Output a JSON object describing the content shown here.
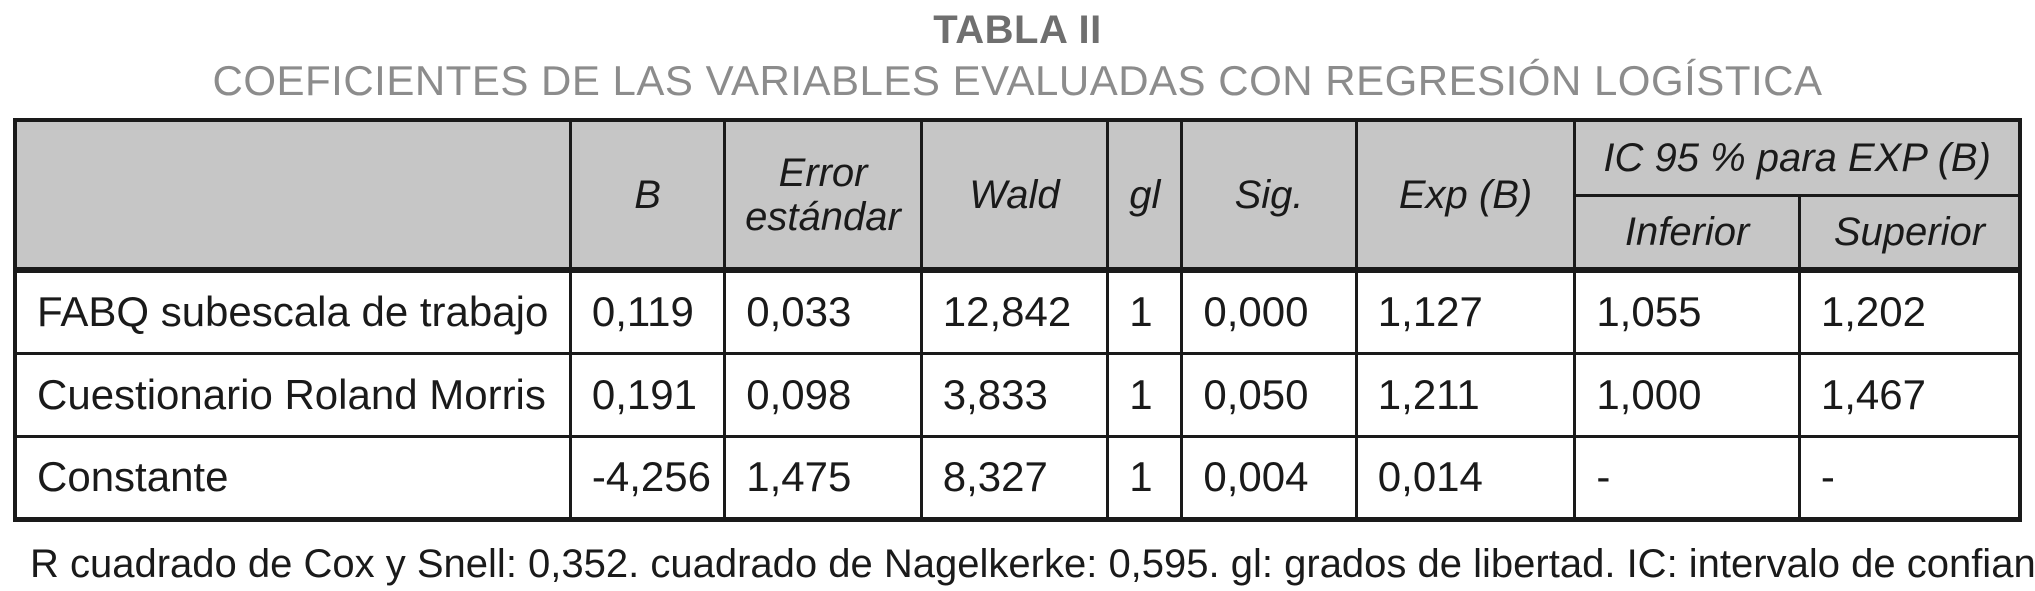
{
  "title": "TABLA II",
  "subtitle": "COEFICIENTES DE LAS VARIABLES EVALUADAS CON REGRESIÓN LOGÍSTICA",
  "table": {
    "headers": {
      "row_label": "",
      "b": "B",
      "std_error": "Error estándar",
      "wald": "Wald",
      "gl": "gl",
      "sig": "Sig.",
      "exp_b": "Exp (B)",
      "ic_group": "IC 95 % para EXP (B)",
      "inferior": "Inferior",
      "superior": "Superior"
    },
    "rows": [
      {
        "label": "FABQ subescala de trabajo",
        "values": [
          "0,119",
          "0,033",
          "12,842",
          "1",
          "0,000",
          "1,127",
          "1,055",
          "1,202"
        ]
      },
      {
        "label": "Cuestionario Roland Morris",
        "values": [
          "0,191",
          "0,098",
          "3,833",
          "1",
          "0,050",
          "1,211",
          "1,000",
          "1,467"
        ]
      },
      {
        "label": "Constante",
        "values": [
          "-4,256",
          "1,475",
          "8,327",
          "1",
          "0,004",
          "0,014",
          "-",
          "-"
        ]
      }
    ]
  },
  "footnote": "R cuadrado de Cox y Snell: 0,352. cuadrado de Nagelkerke: 0,595. gl: grados de libertad. IC: intervalo de confianza.",
  "colors": {
    "header_bg": "#c6c6c6",
    "border": "#1a1a1a",
    "title_text": "#6f6f6f",
    "subtitle_text": "#8c8c8c",
    "body_text": "#1a1a1a"
  }
}
